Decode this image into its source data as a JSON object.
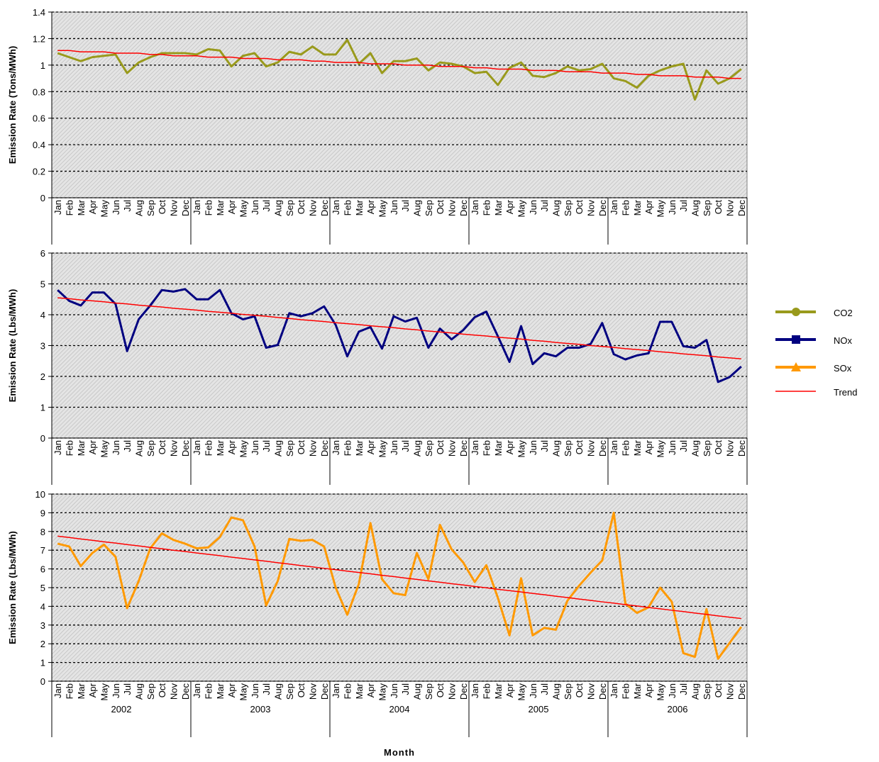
{
  "chart_data": [
    {
      "type": "line",
      "ylabel": "Emission Rate (Tons/MWh)",
      "categories": [
        "Jan",
        "Feb",
        "Mar",
        "Apr",
        "May",
        "Jun",
        "Jul",
        "Aug",
        "Sep",
        "Oct",
        "Nov",
        "Dec",
        "Jan",
        "Feb",
        "Mar",
        "Apr",
        "May",
        "Jun",
        "Jul",
        "Aug",
        "Sep",
        "Oct",
        "Nov",
        "Dec",
        "Jan",
        "Feb",
        "Mar",
        "Apr",
        "May",
        "Jun",
        "Jul",
        "Aug",
        "Sep",
        "Oct",
        "Nov",
        "Dec",
        "Jan",
        "Feb",
        "Mar",
        "Apr",
        "May",
        "Jun",
        "Jul",
        "Aug",
        "Sep",
        "Oct",
        "Nov",
        "Dec",
        "Jan",
        "Feb",
        "Mar",
        "Apr",
        "May",
        "Jun",
        "Jul",
        "Aug",
        "Sep",
        "Oct",
        "Nov",
        "Dec"
      ],
      "series": [
        {
          "name": "CO2",
          "color": "#999a1c",
          "marker": "circle",
          "values": [
            1.09,
            1.06,
            1.03,
            1.06,
            1.07,
            1.08,
            0.94,
            1.02,
            1.06,
            1.09,
            1.09,
            1.09,
            1.08,
            1.12,
            1.11,
            0.99,
            1.07,
            1.09,
            0.99,
            1.02,
            1.1,
            1.08,
            1.14,
            1.08,
            1.08,
            1.19,
            1.01,
            1.09,
            0.94,
            1.03,
            1.03,
            1.05,
            0.96,
            1.02,
            1.01,
            0.99,
            0.94,
            0.95,
            0.85,
            0.98,
            1.02,
            0.92,
            0.91,
            0.94,
            0.99,
            0.96,
            0.97,
            1.01,
            0.9,
            0.88,
            0.83,
            0.92,
            0.96,
            0.99,
            1.01,
            0.74,
            0.96,
            0.86,
            0.9,
            0.97
          ]
        },
        {
          "name": "Trend",
          "color": "#ff0000",
          "values": [
            1.11,
            1.11,
            1.1,
            1.1,
            1.1,
            1.09,
            1.09,
            1.09,
            1.08,
            1.08,
            1.07,
            1.07,
            1.07,
            1.06,
            1.06,
            1.06,
            1.05,
            1.05,
            1.05,
            1.04,
            1.04,
            1.04,
            1.03,
            1.03,
            1.02,
            1.02,
            1.02,
            1.01,
            1.01,
            1.01,
            1.0,
            1.0,
            1.0,
            0.99,
            0.99,
            0.99,
            0.98,
            0.98,
            0.97,
            0.97,
            0.97,
            0.96,
            0.96,
            0.96,
            0.95,
            0.95,
            0.95,
            0.94,
            0.94,
            0.94,
            0.93,
            0.93,
            0.92,
            0.92,
            0.92,
            0.91,
            0.91,
            0.91,
            0.9,
            0.9
          ]
        }
      ],
      "ylim": [
        0,
        1.4
      ],
      "yticks": [
        0,
        0.2,
        0.4,
        0.6,
        0.8,
        1,
        1.2,
        1.4
      ],
      "grid": true,
      "legend": "right"
    },
    {
      "type": "line",
      "ylabel": "Emission Rate (Lbs/MWh)",
      "categories": [
        "Jan",
        "Feb",
        "Mar",
        "Apr",
        "May",
        "Jun",
        "Jul",
        "Aug",
        "Sep",
        "Oct",
        "Nov",
        "Dec",
        "Jan",
        "Feb",
        "Mar",
        "Apr",
        "May",
        "Jun",
        "Jul",
        "Aug",
        "Sep",
        "Oct",
        "Nov",
        "Dec",
        "Jan",
        "Feb",
        "Mar",
        "Apr",
        "May",
        "Jun",
        "Jul",
        "Aug",
        "Sep",
        "Oct",
        "Nov",
        "Dec",
        "Jan",
        "Feb",
        "Mar",
        "Apr",
        "May",
        "Jun",
        "Jul",
        "Aug",
        "Sep",
        "Oct",
        "Nov",
        "Dec",
        "Jan",
        "Feb",
        "Mar",
        "Apr",
        "May",
        "Jun",
        "Jul",
        "Aug",
        "Sep",
        "Oct",
        "Nov",
        "Dec"
      ],
      "series": [
        {
          "name": "NOx",
          "color": "#000080",
          "marker": "square",
          "values": [
            4.8,
            4.45,
            4.3,
            4.72,
            4.72,
            4.35,
            2.82,
            3.85,
            4.3,
            4.8,
            4.75,
            4.83,
            4.5,
            4.5,
            4.8,
            4.05,
            3.85,
            3.95,
            2.93,
            3.02,
            4.05,
            3.95,
            4.05,
            4.27,
            3.67,
            2.65,
            3.45,
            3.6,
            2.9,
            3.95,
            3.78,
            3.9,
            2.93,
            3.55,
            3.2,
            3.5,
            3.92,
            4.1,
            3.3,
            2.47,
            3.63,
            2.4,
            2.75,
            2.65,
            2.93,
            2.93,
            3.05,
            3.73,
            2.72,
            2.55,
            2.68,
            2.75,
            3.77,
            3.77,
            2.98,
            2.93,
            3.18,
            1.82,
            1.98,
            2.32
          ]
        },
        {
          "name": "Trend",
          "color": "#ff0000",
          "values": [
            4.55,
            4.52,
            4.48,
            4.45,
            4.42,
            4.38,
            4.35,
            4.31,
            4.28,
            4.25,
            4.21,
            4.18,
            4.15,
            4.11,
            4.08,
            4.05,
            4.01,
            3.98,
            3.95,
            3.91,
            3.88,
            3.84,
            3.81,
            3.78,
            3.74,
            3.71,
            3.68,
            3.64,
            3.61,
            3.58,
            3.54,
            3.51,
            3.47,
            3.44,
            3.41,
            3.37,
            3.34,
            3.31,
            3.27,
            3.24,
            3.21,
            3.17,
            3.14,
            3.1,
            3.07,
            3.04,
            3.0,
            2.97,
            2.94,
            2.9,
            2.87,
            2.84,
            2.8,
            2.77,
            2.73,
            2.7,
            2.67,
            2.63,
            2.6,
            2.57
          ]
        }
      ],
      "ylim": [
        0,
        6
      ],
      "yticks": [
        0,
        1,
        2,
        3,
        4,
        5,
        6
      ],
      "grid": true
    },
    {
      "type": "line",
      "ylabel": "Emission Rate (Lbs/MWh)",
      "xlabel": "Month",
      "categories": [
        "Jan",
        "Feb",
        "Mar",
        "Apr",
        "May",
        "Jun",
        "Jul",
        "Aug",
        "Sep",
        "Oct",
        "Nov",
        "Dec",
        "Jan",
        "Feb",
        "Mar",
        "Apr",
        "May",
        "Jun",
        "Jul",
        "Aug",
        "Sep",
        "Oct",
        "Nov",
        "Dec",
        "Jan",
        "Feb",
        "Mar",
        "Apr",
        "May",
        "Jun",
        "Jul",
        "Aug",
        "Sep",
        "Oct",
        "Nov",
        "Dec",
        "Jan",
        "Feb",
        "Mar",
        "Apr",
        "May",
        "Jun",
        "Jul",
        "Aug",
        "Sep",
        "Oct",
        "Nov",
        "Dec",
        "Jan",
        "Feb",
        "Mar",
        "Apr",
        "May",
        "Jun",
        "Jul",
        "Aug",
        "Sep",
        "Oct",
        "Nov",
        "Dec"
      ],
      "groups": [
        "2002",
        "2003",
        "2004",
        "2005",
        "2006"
      ],
      "series": [
        {
          "name": "SOx",
          "color": "#ff9900",
          "marker": "triangle",
          "values": [
            7.35,
            7.2,
            6.15,
            6.85,
            7.3,
            6.65,
            3.9,
            5.35,
            7.1,
            7.9,
            7.55,
            7.35,
            7.1,
            7.15,
            7.7,
            8.75,
            8.6,
            7.2,
            4.05,
            5.35,
            7.6,
            7.5,
            7.55,
            7.2,
            5.0,
            3.55,
            5.2,
            8.45,
            5.45,
            4.7,
            4.6,
            6.85,
            5.45,
            8.35,
            7.05,
            6.35,
            5.3,
            6.2,
            4.45,
            2.45,
            5.5,
            2.45,
            2.85,
            2.75,
            4.3,
            5.1,
            5.8,
            6.45,
            9.0,
            4.15,
            3.65,
            3.95,
            5.0,
            4.25,
            1.5,
            1.3,
            3.85,
            1.2,
            2.05,
            2.9
          ]
        },
        {
          "name": "Trend",
          "color": "#ff0000",
          "values": [
            7.75,
            7.68,
            7.6,
            7.53,
            7.45,
            7.38,
            7.3,
            7.23,
            7.15,
            7.08,
            7.0,
            6.93,
            6.85,
            6.78,
            6.71,
            6.63,
            6.56,
            6.48,
            6.41,
            6.33,
            6.26,
            6.18,
            6.11,
            6.03,
            5.96,
            5.88,
            5.81,
            5.74,
            5.66,
            5.59,
            5.51,
            5.44,
            5.36,
            5.29,
            5.21,
            5.14,
            5.06,
            4.99,
            4.91,
            4.84,
            4.77,
            4.69,
            4.62,
            4.54,
            4.47,
            4.39,
            4.32,
            4.24,
            4.17,
            4.09,
            4.02,
            3.94,
            3.87,
            3.79,
            3.72,
            3.64,
            3.57,
            3.49,
            3.42,
            3.35
          ]
        }
      ],
      "ylim": [
        0,
        10
      ],
      "yticks": [
        0,
        1,
        2,
        3,
        4,
        5,
        6,
        7,
        8,
        9,
        10
      ],
      "grid": true
    }
  ]
}
